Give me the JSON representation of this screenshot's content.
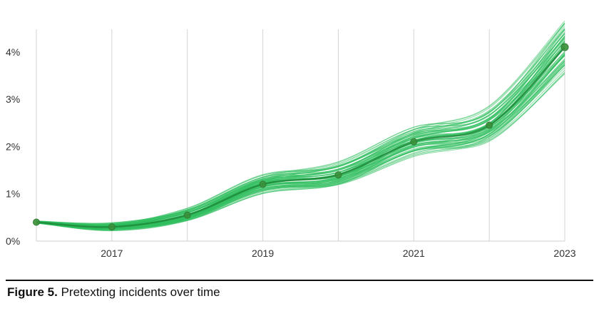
{
  "chart_data": {
    "type": "line",
    "title": "",
    "xlabel": "",
    "ylabel": "",
    "x": [
      2016,
      2017,
      2018,
      2019,
      2020,
      2021,
      2022,
      2023
    ],
    "series": [
      {
        "values": [
          0.4,
          0.3,
          0.55,
          1.2,
          1.4,
          2.1,
          2.45,
          4.1
        ]
      }
    ],
    "xlim": [
      2016,
      2023
    ],
    "ylim": [
      0,
      4.6
    ],
    "x_ticks": [
      {
        "value": 2017,
        "label": "2017"
      },
      {
        "value": 2019,
        "label": "2019"
      },
      {
        "value": 2021,
        "label": "2021"
      },
      {
        "value": 2023,
        "label": "2023"
      }
    ],
    "y_ticks": [
      {
        "value": 0,
        "label": "0%"
      },
      {
        "value": 1,
        "label": "1%"
      },
      {
        "value": 2,
        "label": "2%"
      },
      {
        "value": 3,
        "label": "3%"
      },
      {
        "value": 4,
        "label": "4%"
      }
    ],
    "grid": "vertical",
    "uncertainty_band": true,
    "colors": {
      "band": "#2ebd5c",
      "line": "#1e8a3a",
      "point": "#3a8f3a"
    }
  },
  "caption": {
    "figure_label": "Figure 5.",
    "text": "Pretexting incidents over time"
  }
}
